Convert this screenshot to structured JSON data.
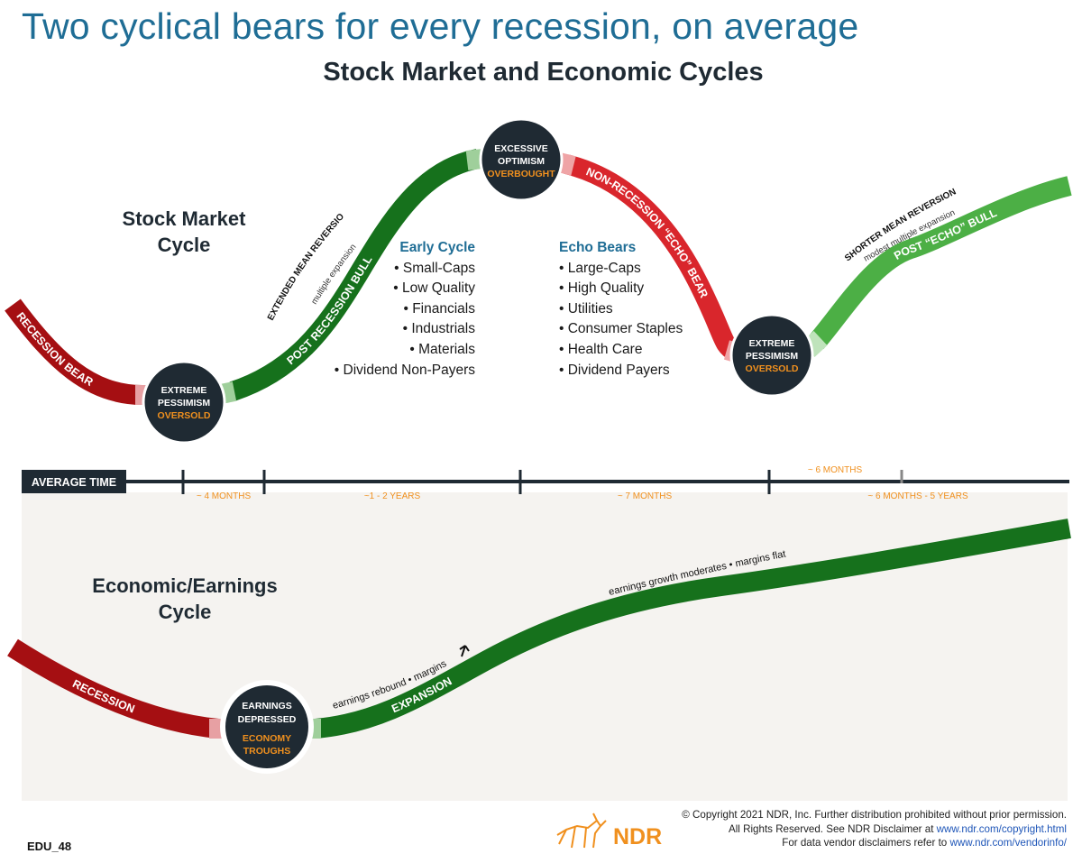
{
  "title": "Two cyclical bears for every recession, on average",
  "subtitle": "Stock Market and Economic Cycles",
  "stock_cycle_label": [
    "Stock Market",
    "Cycle"
  ],
  "econ_cycle_label": [
    "Economic/Earnings",
    "Cycle"
  ],
  "stock_segments": {
    "recession_bear": "RECESSION BEAR",
    "post_recession_bull": "POST RECESSION BULL",
    "non_recession_bear": "NON-RECESSION “ECHO” BEAR",
    "post_echo_bull": "POST “ECHO” BULL"
  },
  "annotations": {
    "extended_mean_reversion": "EXTENDED MEAN REVERSION",
    "multiple_expansion": "multiple expansion",
    "shorter_mean_reversion": "SHORTER MEAN REVERSION",
    "modest_multiple_expansion": "modest multiple expansion"
  },
  "circles": {
    "trough1": {
      "line1": "EXTREME",
      "line2": "PESSIMISM",
      "accent": "OVERSOLD"
    },
    "peak": {
      "line1": "EXCESSIVE",
      "line2": "OPTIMISM",
      "accent": "OVERBOUGHT"
    },
    "trough2": {
      "line1": "EXTREME",
      "line2": "PESSIMISM",
      "accent": "OVERSOLD"
    },
    "econ": {
      "line1": "EARNINGS",
      "line2": "DEPRESSED",
      "accent1": "ECONOMY",
      "accent2": "TROUGHS"
    }
  },
  "early_cycle": {
    "title": "Early Cycle",
    "items": [
      "•  Small-Caps",
      "•  Low Quality",
      "•  Financials",
      "•  Industrials",
      "•  Materials",
      "•  Dividend Non-Payers"
    ]
  },
  "echo_bears": {
    "title": "Echo Bears",
    "items": [
      "•  Large-Caps",
      "•  High Quality",
      "•  Utilities",
      "•  Consumer Staples",
      "•  Health Care",
      "•  Dividend Payers"
    ]
  },
  "timeline": {
    "label": "AVERAGE TIME",
    "durations": [
      "~ 4 MONTHS",
      "~1 - 2 YEARS",
      "~ 7 MONTHS",
      "~ 6 MONTHS - 5 YEARS"
    ],
    "upper_duration": "~ 6 MONTHS"
  },
  "econ_segments": {
    "recession": "RECESSION",
    "expansion": "EXPANSION",
    "rebound_note": "earnings rebound • margins",
    "moderate_note": "earnings growth moderates • margins flat"
  },
  "footer": {
    "line1": "© Copyright 2021 NDR, Inc. Further distribution prohibited without prior permission.",
    "line2_text": "All Rights Reserved. See NDR Disclaimer at ",
    "line2_link": "www.ndr.com/copyright.html",
    "line3_text": "For data vendor disclaimers refer to ",
    "line3_link": "www.ndr.com/vendorinfo/"
  },
  "logo_text": "NDR",
  "doc_code": "EDU_48",
  "colors": {
    "title_blue": "#1f6d95",
    "dark_red": "#a50f12",
    "red": "#d9262c",
    "dark_green": "#16711c",
    "light_green": "#4caf45",
    "orange": "#f0901e",
    "navy": "#1f2a33"
  }
}
